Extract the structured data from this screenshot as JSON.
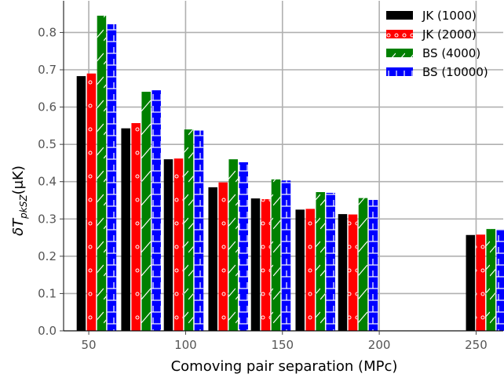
{
  "chart_data": {
    "type": "bar",
    "xlabel": "Comoving pair separation (MPc)",
    "ylabel_main": "δT",
    "ylabel_sub": "pkSZ",
    "ylabel_unit": "(μK)",
    "xlim": [
      37,
      264
    ],
    "ylim": [
      0.0,
      0.885
    ],
    "xticks": [
      50,
      100,
      150,
      200,
      250
    ],
    "yticks": [
      0.0,
      0.1,
      0.2,
      0.3,
      0.4,
      0.5,
      0.6,
      0.7,
      0.8
    ],
    "grid": true,
    "legend_position": "top-right",
    "x": [
      54,
      77,
      99,
      122,
      144,
      167,
      189,
      255
    ],
    "series": [
      {
        "name": "JK (1000)",
        "color": "#000000",
        "hatch": "none",
        "values": [
          0.683,
          0.543,
          0.46,
          0.385,
          0.355,
          0.325,
          0.313,
          0.257
        ]
      },
      {
        "name": "JK (2000)",
        "color": "#ff0000",
        "hatch": "circles",
        "values": [
          0.69,
          0.557,
          0.462,
          0.398,
          0.353,
          0.327,
          0.312,
          0.258
        ]
      },
      {
        "name": "BS (4000)",
        "color": "#008000",
        "hatch": "diagonal",
        "values": [
          0.845,
          0.641,
          0.54,
          0.46,
          0.406,
          0.372,
          0.356,
          0.273
        ]
      },
      {
        "name": "BS (10000)",
        "color": "#0000ff",
        "hatch": "horizontal",
        "values": [
          0.822,
          0.645,
          0.537,
          0.452,
          0.403,
          0.37,
          0.351,
          0.272
        ]
      }
    ]
  }
}
